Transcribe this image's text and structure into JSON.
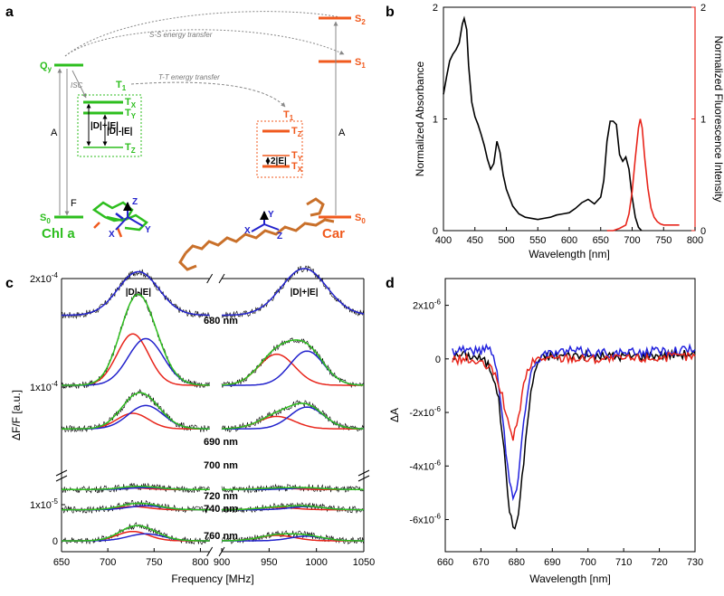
{
  "panels": {
    "a": {
      "label": "a",
      "chl": {
        "name": "Chl a",
        "color": "#2dbe1e",
        "levels": {
          "qy": "Q",
          "qy_sub": "y",
          "s0": "S",
          "s0_sub": "0",
          "t1": "T",
          "t1_sub": "1",
          "tx": "T",
          "tx_sub": "X",
          "ty": "T",
          "ty_sub": "Y",
          "tz": "T",
          "tz_sub": "Z"
        },
        "splittings": [
          "|D|+|E|",
          "|D|-|E|"
        ],
        "transitions": {
          "absorption": "A",
          "fluorescence": "F",
          "isc": "ISC"
        }
      },
      "car": {
        "name": "Car",
        "color": "#f05a1e",
        "levels": {
          "s2": "S",
          "s2_sub": "2",
          "s1": "S",
          "s1_sub": "1",
          "s0": "S",
          "s0_sub": "0",
          "t1": "T",
          "t1_sub": "1",
          "tz": "T",
          "tz_sub": "Z",
          "ty": "T",
          "ty_sub": "Y",
          "tx": "T",
          "tx_sub": "X"
        },
        "splitting": "2|E|",
        "transitions": {
          "absorption": "A"
        }
      },
      "energy_transfer": {
        "ss": "S-S energy transfer",
        "tt": "T-T energy transfer"
      },
      "axes": {
        "x": "X",
        "y": "Y",
        "z": "Z"
      }
    },
    "b": {
      "label": "b"
    },
    "c": {
      "label": "c",
      "wavelength_labels": [
        "680 nm",
        "690 nm",
        "700 nm",
        "720 nm",
        "740 nm",
        "760 nm"
      ],
      "peak_labels": [
        "|D|-|E|",
        "|D|+|E|"
      ]
    },
    "d": {
      "label": "d"
    }
  },
  "chart_data": [
    {
      "id": "b",
      "type": "line",
      "xlabel": "Wavelength [nm]",
      "ylabel": "Normalized Absorbance",
      "y2label": "Normalized Fluorescence Intensity",
      "xlim": [
        400,
        800
      ],
      "ylim": [
        0,
        2
      ],
      "y2lim": [
        0,
        2
      ],
      "xticks": [
        400,
        450,
        500,
        550,
        600,
        650,
        700,
        750,
        800
      ],
      "yticks": [
        0,
        1,
        2
      ],
      "y2ticks": [
        0,
        1,
        2
      ],
      "series": [
        {
          "name": "Absorbance",
          "axis": "left",
          "color": "#000000",
          "x": [
            400,
            405,
            410,
            415,
            420,
            425,
            430,
            433,
            437,
            440,
            445,
            450,
            455,
            460,
            465,
            470,
            475,
            480,
            485,
            490,
            495,
            500,
            510,
            520,
            530,
            540,
            550,
            560,
            570,
            580,
            590,
            600,
            610,
            620,
            630,
            640,
            650,
            655,
            660,
            665,
            670,
            675,
            680,
            685,
            690,
            695,
            700,
            705,
            710,
            715
          ],
          "y": [
            1.22,
            1.38,
            1.52,
            1.58,
            1.62,
            1.68,
            1.85,
            1.9,
            1.8,
            1.48,
            1.15,
            1.02,
            0.95,
            0.86,
            0.76,
            0.64,
            0.55,
            0.6,
            0.8,
            0.7,
            0.5,
            0.37,
            0.22,
            0.15,
            0.12,
            0.11,
            0.1,
            0.11,
            0.12,
            0.14,
            0.15,
            0.16,
            0.2,
            0.25,
            0.28,
            0.24,
            0.3,
            0.45,
            0.8,
            0.98,
            0.98,
            0.95,
            0.68,
            0.62,
            0.66,
            0.55,
            0.3,
            0.12,
            0.03,
            0.0
          ]
        },
        {
          "name": "Fluorescence",
          "axis": "right",
          "color": "#e8251b",
          "x": [
            660,
            670,
            680,
            690,
            695,
            700,
            705,
            710,
            713,
            716,
            720,
            725,
            730,
            735,
            740,
            745,
            750,
            760,
            770,
            775
          ],
          "y": [
            0.0,
            0.0,
            0.02,
            0.05,
            0.15,
            0.35,
            0.65,
            0.92,
            1.0,
            0.92,
            0.65,
            0.38,
            0.2,
            0.12,
            0.08,
            0.06,
            0.05,
            0.05,
            0.05,
            0.05
          ]
        }
      ]
    },
    {
      "id": "c",
      "type": "line",
      "xlabel": "Frequency [MHz]",
      "ylabel": "ΔF/F [a.u.]",
      "xlim": [
        650,
        1050
      ],
      "axis_break": [
        810,
        900
      ],
      "xticks": [
        650,
        700,
        750,
        800,
        900,
        950,
        1000,
        1050
      ],
      "yticks": [
        "0",
        "1x10^-5",
        "1x10^-4",
        "2x10^-4"
      ],
      "traces": [
        {
          "wavelength": "680 nm",
          "offset": 1.45,
          "left": {
            "center": 733,
            "width": 22,
            "amp": 0.28
          },
          "right": {
            "center": 987,
            "width": 24,
            "amp": 0.3
          },
          "fit_color": "#2222cc"
        },
        {
          "wavelength": "690 nm",
          "offset": 1.0,
          "left": {
            "components": [
              {
                "center": 727,
                "width": 17,
                "amp": 0.33,
                "color": "#e8251b"
              },
              {
                "center": 741,
                "width": 19,
                "amp": 0.3,
                "color": "#2222cc"
              }
            ]
          },
          "right": {
            "components": [
              {
                "center": 958,
                "width": 19,
                "amp": 0.2,
                "color": "#e8251b"
              },
              {
                "center": 990,
                "width": 18,
                "amp": 0.22,
                "color": "#2222cc"
              }
            ]
          },
          "sum_color": "#2dbe1e"
        },
        {
          "wavelength": "700 nm",
          "offset": 0.72,
          "left": {
            "components": [
              {
                "center": 727,
                "width": 17,
                "amp": 0.1,
                "color": "#e8251b"
              },
              {
                "center": 741,
                "width": 19,
                "amp": 0.15,
                "color": "#2222cc"
              }
            ]
          },
          "right": {
            "components": [
              {
                "center": 958,
                "width": 19,
                "amp": 0.08,
                "color": "#e8251b"
              },
              {
                "center": 990,
                "width": 18,
                "amp": 0.14,
                "color": "#2222cc"
              }
            ]
          },
          "sum_color": "#2dbe1e"
        },
        {
          "wavelength": "720 nm",
          "offset": 0.33,
          "left": {
            "components": [
              {
                "center": 727,
                "width": 17,
                "amp": 0.01,
                "color": "#e8251b"
              },
              {
                "center": 741,
                "width": 19,
                "amp": 0.012,
                "color": "#2222cc"
              }
            ]
          },
          "right": {
            "components": [
              {
                "center": 958,
                "width": 19,
                "amp": 0.008,
                "color": "#e8251b"
              },
              {
                "center": 990,
                "width": 18,
                "amp": 0.01,
                "color": "#2222cc"
              }
            ]
          },
          "sum_color": "#2dbe1e"
        },
        {
          "wavelength": "740 nm",
          "offset": 0.2,
          "left": {
            "components": [
              {
                "center": 727,
                "width": 17,
                "amp": 0.02,
                "color": "#e8251b"
              },
              {
                "center": 741,
                "width": 19,
                "amp": 0.025,
                "color": "#2222cc"
              }
            ]
          },
          "right": {
            "components": [
              {
                "center": 958,
                "width": 19,
                "amp": 0.015,
                "color": "#e8251b"
              },
              {
                "center": 990,
                "width": 18,
                "amp": 0.02,
                "color": "#2222cc"
              }
            ]
          },
          "sum_color": "#2dbe1e"
        },
        {
          "wavelength": "760 nm",
          "offset": 0.0,
          "left": {
            "components": [
              {
                "center": 727,
                "width": 17,
                "amp": 0.06,
                "color": "#e8251b"
              },
              {
                "center": 741,
                "width": 19,
                "amp": 0.045,
                "color": "#2222cc"
              }
            ]
          },
          "right": {
            "components": [
              {
                "center": 958,
                "width": 19,
                "amp": 0.035,
                "color": "#e8251b"
              },
              {
                "center": 990,
                "width": 18,
                "amp": 0.03,
                "color": "#2222cc"
              }
            ]
          },
          "sum_color": "#2dbe1e"
        }
      ]
    },
    {
      "id": "d",
      "type": "line",
      "xlabel": "Wavelength [nm]",
      "ylabel": "ΔA",
      "xlim": [
        660,
        730
      ],
      "ylim": [
        -7.2,
        3.0
      ],
      "xticks": [
        660,
        670,
        680,
        690,
        700,
        710,
        720,
        730
      ],
      "yticks": [
        2,
        0,
        -2,
        -4,
        -6
      ],
      "ytick_labels": [
        "2x10^-6",
        "0",
        "-2x10^-6",
        "-4x10^-6",
        "-6x10^-6"
      ],
      "series": [
        {
          "name": "black",
          "color": "#000000",
          "x": [
            662,
            665,
            668,
            670,
            672,
            674,
            675,
            676,
            677,
            678,
            679,
            680,
            681,
            682,
            683,
            684,
            685,
            686,
            688,
            690,
            695,
            700,
            710,
            720,
            730
          ],
          "y": [
            0.1,
            0.15,
            0.1,
            0.0,
            -0.2,
            -0.8,
            -1.6,
            -2.8,
            -4.2,
            -5.6,
            -6.4,
            -6.1,
            -5.2,
            -3.8,
            -2.4,
            -1.3,
            -0.5,
            -0.1,
            0.1,
            0.1,
            0.15,
            0.1,
            0.1,
            0.15,
            0.2
          ]
        },
        {
          "name": "blue",
          "color": "#2222dd",
          "x": [
            662,
            665,
            668,
            670,
            672,
            673,
            674,
            675,
            676,
            677,
            678,
            679,
            680,
            681,
            682,
            683,
            684,
            686,
            688,
            690,
            695,
            700,
            710,
            720,
            730
          ],
          "y": [
            0.3,
            0.4,
            0.3,
            0.3,
            0.5,
            0.3,
            -0.2,
            -0.9,
            -2.0,
            -3.4,
            -4.6,
            -5.2,
            -4.9,
            -3.8,
            -2.3,
            -1.2,
            -0.5,
            0.0,
            0.2,
            0.2,
            0.3,
            0.25,
            0.2,
            0.3,
            0.35
          ]
        },
        {
          "name": "red",
          "color": "#e8251b",
          "x": [
            662,
            665,
            668,
            670,
            672,
            674,
            675,
            676,
            677,
            678,
            679,
            680,
            681,
            682,
            683,
            684,
            686,
            688,
            690,
            695,
            700,
            710,
            720,
            730
          ],
          "y": [
            -0.05,
            0.0,
            -0.1,
            -0.2,
            -0.3,
            -0.6,
            -0.9,
            -1.4,
            -2.1,
            -2.7,
            -2.9,
            -2.5,
            -1.8,
            -1.0,
            -0.5,
            -0.2,
            0.0,
            0.05,
            0.0,
            0.05,
            0.0,
            0.0,
            0.05,
            0.1
          ]
        }
      ]
    }
  ]
}
